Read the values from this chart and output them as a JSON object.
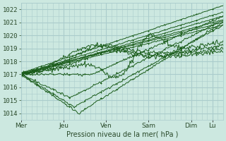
{
  "bg_color": "#cce8e0",
  "grid_color": "#aacccc",
  "line_color": "#1a5c1a",
  "marker_color": "#1a5c1a",
  "xlabel": "Pression niveau de la mer( hPa )",
  "tick_color": "#2a4a2a",
  "ylim": [
    1013.5,
    1022.5
  ],
  "yticks": [
    1014,
    1015,
    1016,
    1017,
    1018,
    1019,
    1020,
    1021,
    1022
  ],
  "xtick_labels": [
    "Mer",
    "Jeu",
    "Ven",
    "Sam",
    "Dim",
    "Lu"
  ],
  "xtick_positions": [
    0,
    48,
    96,
    144,
    192,
    216
  ],
  "total_hours": 228,
  "line_width": 0.7,
  "marker_size": 1.8,
  "font_size": 6.5
}
